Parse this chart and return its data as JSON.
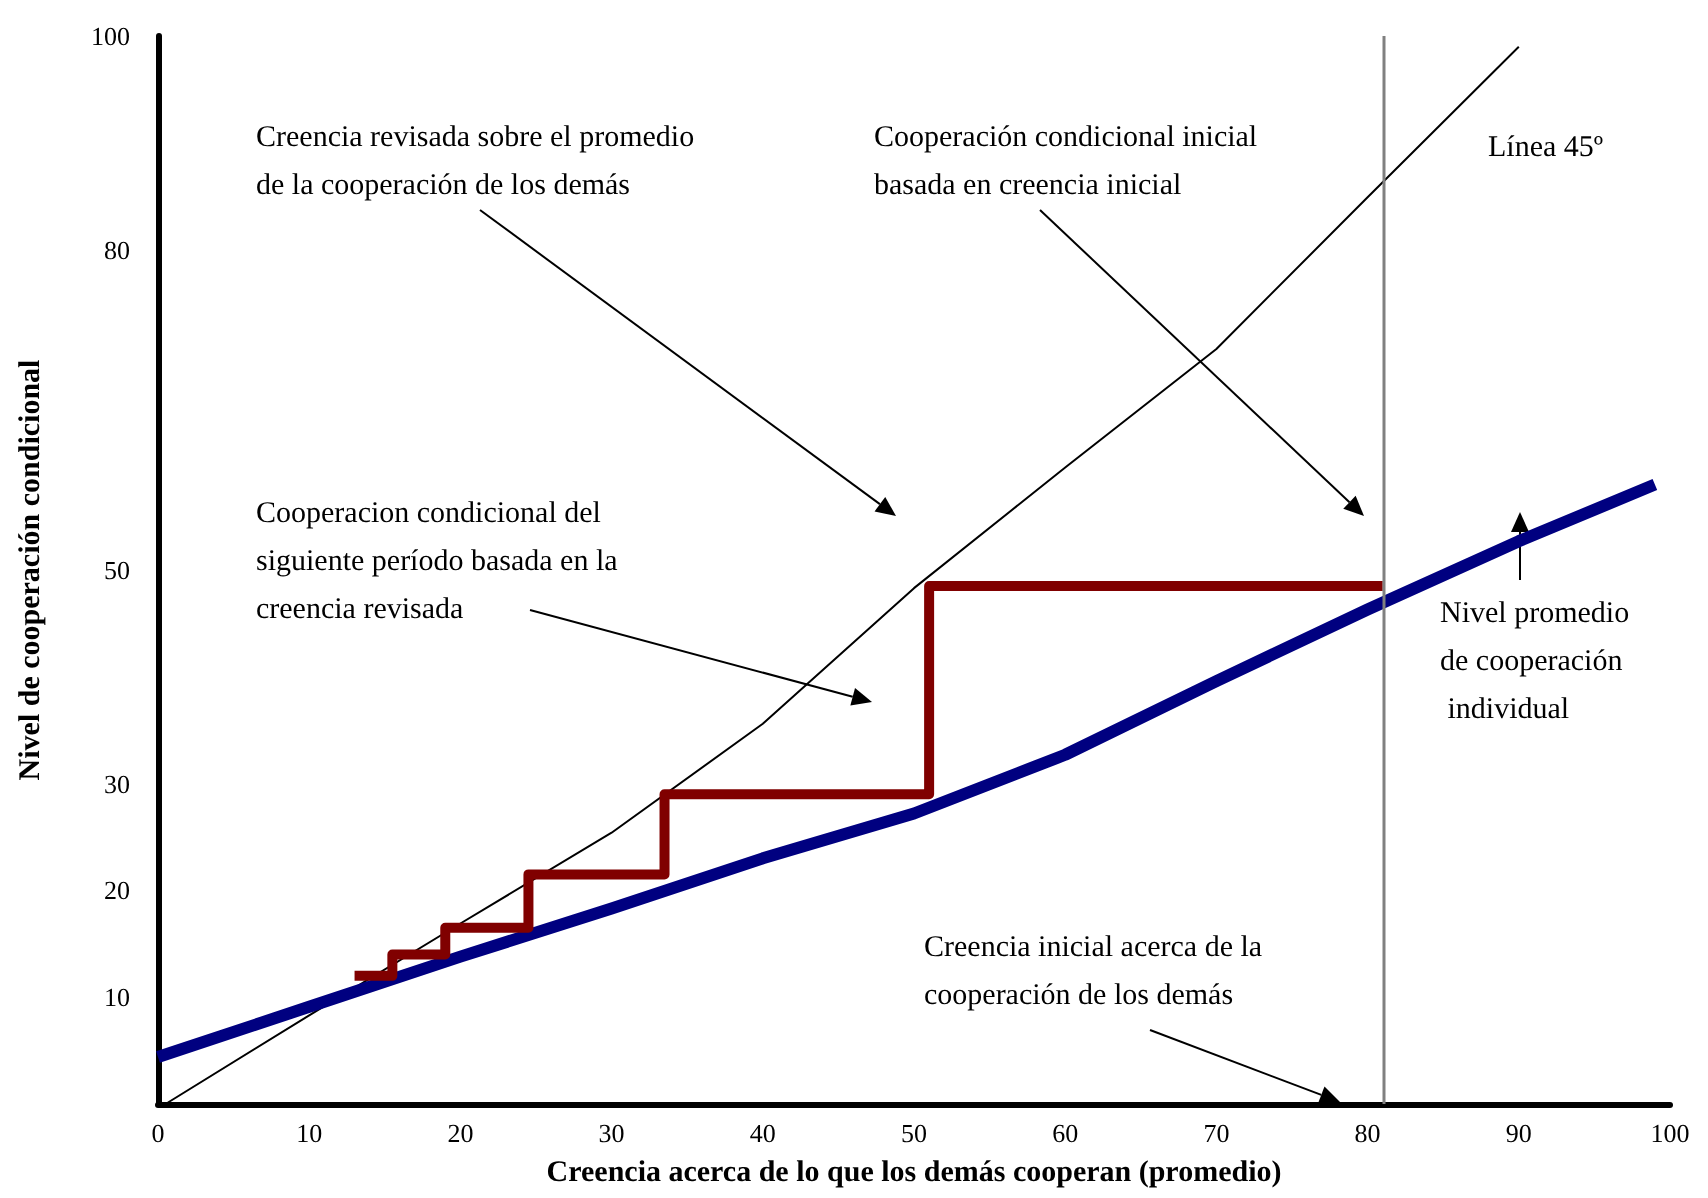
{
  "chart_data": {
    "type": "line",
    "xlabel": "Creencia acerca de lo que los demás cooperan (promedio)",
    "ylabel": "Nivel de cooperación condicional",
    "xlim": [
      0,
      100
    ],
    "xticks": [
      0,
      10,
      20,
      30,
      40,
      50,
      60,
      70,
      80,
      90,
      100
    ],
    "ylim": [
      0,
      100
    ],
    "yticks": [
      10,
      20,
      30,
      50,
      80,
      100
    ],
    "series": [
      {
        "color": "#000000",
        "x": [
          0.5,
          10,
          20,
          30,
          40,
          50,
          60,
          70,
          80,
          90
        ],
        "values": [
          0,
          8.3,
          16.9,
          25.4,
          35.6,
          48.3,
          59.6,
          70.7,
          84.9,
          99
        ]
      },
      {
        "color": "#000080",
        "x": [
          0,
          10,
          20,
          30,
          40,
          50,
          60,
          70,
          80,
          90,
          99
        ],
        "values": [
          4.4,
          9.1,
          13.8,
          18.3,
          23,
          27.2,
          32.7,
          39.6,
          46.3,
          52.7,
          58
        ]
      },
      {
        "color": "#800000",
        "x": [
          81,
          51,
          51,
          33.5,
          33.5,
          24.5,
          24.5,
          19,
          19,
          15.5,
          15.5,
          13
        ],
        "values": [
          48.5,
          48.5,
          29,
          29,
          21.5,
          21.5,
          16.5,
          16.5,
          14,
          14,
          12,
          12
        ]
      }
    ],
    "ref_lines": [
      {
        "axis": "x",
        "value": 81,
        "color": "#808080"
      }
    ],
    "annotations": [
      "Creencia revisada sobre el promedio de la cooperación de los demás",
      "Cooperación condicional inicial basada en creencia inicial",
      "Línea 45º",
      "Cooperacion condicional del siguiente período basada en la creencia revisada",
      "Nivel promedio de cooperación individual",
      "Creencia inicial acerca de la cooperación de los demás"
    ],
    "marker": "none"
  }
}
